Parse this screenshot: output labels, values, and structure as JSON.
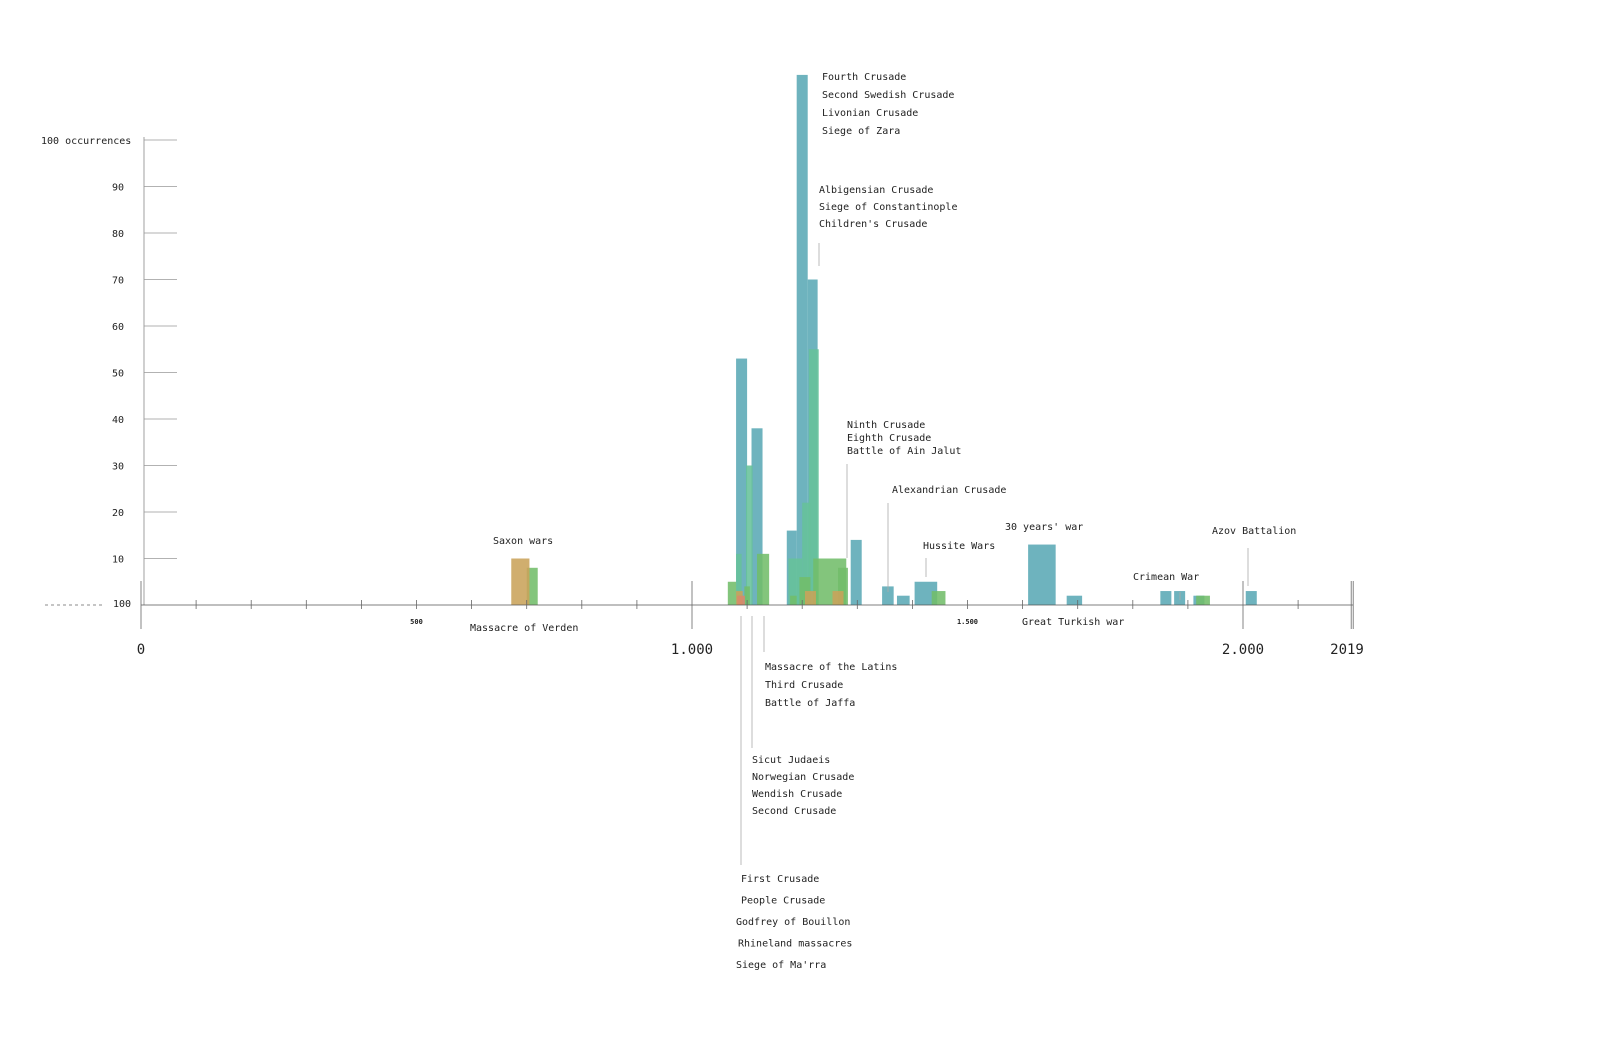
{
  "chart_data": {
    "type": "bar",
    "x_domain": [
      0,
      2019
    ],
    "ylim": [
      0,
      100
    ],
    "y_top_label": "100 occurrences",
    "y_tick_labels": [
      "90",
      "80",
      "70",
      "60",
      "50",
      "40",
      "30",
      "20",
      "10",
      "100"
    ],
    "x_major_labels": [
      {
        "x": 0,
        "text": "0"
      },
      {
        "x": 1000,
        "text": "1.000"
      },
      {
        "x": 2000,
        "text": "2.000"
      },
      {
        "x": 2019,
        "text": "2019"
      }
    ],
    "x_minor_labels": [
      {
        "x": 500,
        "text": "500"
      },
      {
        "x": 1500,
        "text": "1.500"
      }
    ],
    "series": [
      {
        "color": "#5aa9b5",
        "bars": [
          {
            "x0": 1080,
            "x1": 1100,
            "value": 53
          },
          {
            "x0": 1108,
            "x1": 1128,
            "value": 38
          },
          {
            "x0": 1172,
            "x1": 1190,
            "value": 16
          },
          {
            "x0": 1190,
            "x1": 1210,
            "value": 114
          },
          {
            "x0": 1210,
            "x1": 1228,
            "value": 70
          },
          {
            "x0": 1288,
            "x1": 1308,
            "value": 14
          },
          {
            "x0": 1345,
            "x1": 1366,
            "value": 4
          },
          {
            "x0": 1372,
            "x1": 1395,
            "value": 2
          },
          {
            "x0": 1404,
            "x1": 1445,
            "value": 5
          },
          {
            "x0": 1610,
            "x1": 1660,
            "value": 13
          },
          {
            "x0": 1680,
            "x1": 1708,
            "value": 2
          },
          {
            "x0": 1850,
            "x1": 1870,
            "value": 3
          },
          {
            "x0": 1875,
            "x1": 1895,
            "value": 3
          },
          {
            "x0": 1910,
            "x1": 1930,
            "value": 2
          },
          {
            "x0": 2005,
            "x1": 2025,
            "value": 3
          }
        ]
      },
      {
        "color": "#66c29a",
        "bars": [
          {
            "x0": 1080,
            "x1": 1090,
            "value": 11
          },
          {
            "x0": 1098,
            "x1": 1110,
            "value": 30
          },
          {
            "x0": 1175,
            "x1": 1200,
            "value": 10
          },
          {
            "x0": 1200,
            "x1": 1215,
            "value": 22
          },
          {
            "x0": 1212,
            "x1": 1230,
            "value": 55
          }
        ]
      },
      {
        "color": "#72bd6a",
        "bars": [
          {
            "x0": 1065,
            "x1": 1080,
            "value": 5
          },
          {
            "x0": 1095,
            "x1": 1105,
            "value": 4
          },
          {
            "x0": 1118,
            "x1": 1140,
            "value": 11
          },
          {
            "x0": 1178,
            "x1": 1190,
            "value": 2
          },
          {
            "x0": 1195,
            "x1": 1215,
            "value": 6
          },
          {
            "x0": 1220,
            "x1": 1280,
            "value": 10
          },
          {
            "x0": 1265,
            "x1": 1283,
            "value": 8
          },
          {
            "x0": 1435,
            "x1": 1460,
            "value": 3
          },
          {
            "x0": 1915,
            "x1": 1940,
            "value": 2
          },
          {
            "x0": 700,
            "x1": 720,
            "value": 8
          }
        ]
      },
      {
        "color": "#c9a35a",
        "bars": [
          {
            "x0": 672,
            "x1": 705,
            "value": 10
          },
          {
            "x0": 1080,
            "x1": 1092,
            "value": 3
          },
          {
            "x0": 1205,
            "x1": 1225,
            "value": 3
          },
          {
            "x0": 1255,
            "x1": 1275,
            "value": 3
          }
        ]
      },
      {
        "color": "#d9896a",
        "bars": [
          {
            "x0": 1082,
            "x1": 1096,
            "value": 2
          }
        ]
      }
    ],
    "annotations": [
      {
        "lines": [
          "Fourth Crusade",
          "Second Swedish Crusade",
          "Livonian Crusade",
          "Siege of Zara"
        ]
      },
      {
        "lines": [
          "Albigensian Crusade",
          "Siege of Constantinople",
          "Children's Crusade"
        ]
      },
      {
        "lines": [
          "Ninth Crusade",
          "Eighth Crusade",
          "Battle of Ain Jalut"
        ]
      },
      {
        "lines": [
          "Alexandrian Crusade"
        ]
      },
      {
        "lines": [
          "Hussite Wars"
        ]
      },
      {
        "lines": [
          "30 years' war"
        ]
      },
      {
        "lines": [
          "Azov Battalion"
        ]
      },
      {
        "lines": [
          "Crimean War"
        ]
      },
      {
        "lines": [
          "Saxon wars"
        ]
      },
      {
        "lines": [
          "Massacre of Verden"
        ]
      },
      {
        "lines": [
          "Great Turkish war"
        ]
      },
      {
        "lines": [
          "Massacre of the Latins",
          "Third Crusade",
          "Battle of Jaffa"
        ]
      },
      {
        "lines": [
          "Sicut Judaeis",
          "Norwegian Crusade",
          "Wendish Crusade",
          "Second Crusade"
        ]
      },
      {
        "lines": [
          "First Crusade",
          "People Crusade",
          "Godfrey of Bouillon",
          "Rhineland massacres",
          "Siege of Ma'rra"
        ]
      }
    ]
  }
}
